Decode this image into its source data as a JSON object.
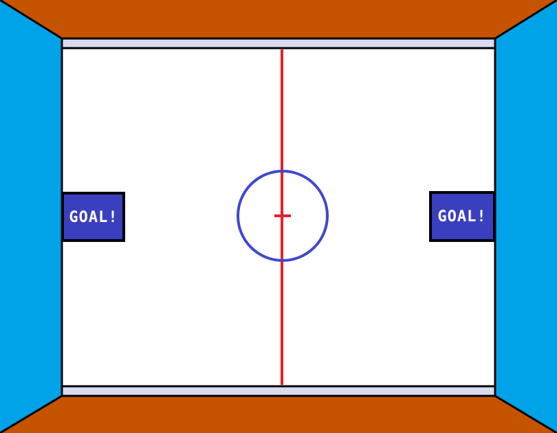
{
  "colors": {
    "wall_top_bottom": "#c55300",
    "wall_sides": "#00a2e8",
    "rink_ice": "#ffffff",
    "board_strip": "#d9dcf0",
    "outline": "#000000",
    "center_line": "#e8202a",
    "center_circle": "#3f48cc",
    "goal_fill": "#3a3fbf",
    "goal_text": "#ffffff"
  },
  "goals": {
    "left_label": "GOAL!",
    "right_label": "GOAL!"
  }
}
